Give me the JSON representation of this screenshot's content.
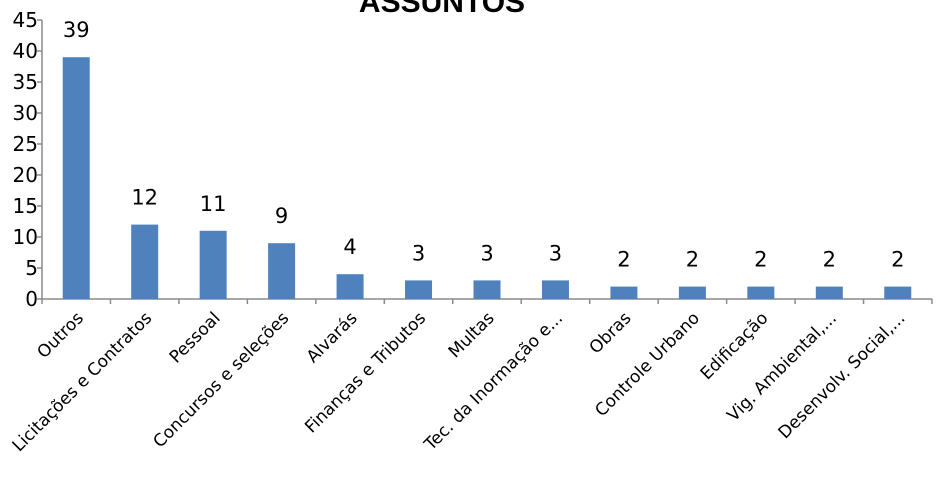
{
  "chart_data": {
    "type": "bar",
    "title": "ASSUNTOS",
    "categories": [
      "Outros",
      "Licitações e Contratos",
      "Pessoal",
      "Concursos e seleções",
      "Alvarás",
      "Finanças e Tributos",
      "Multas",
      "Tec. da Inormação e...",
      "Obras",
      "Controle Urbano",
      "Edificação",
      "Vig. Ambiental,...",
      "Desenvolv. Social,..."
    ],
    "values": [
      39,
      12,
      11,
      9,
      4,
      3,
      3,
      3,
      2,
      2,
      2,
      2,
      2
    ],
    "ylim": [
      0,
      45
    ],
    "yticks": [
      0,
      5,
      10,
      15,
      20,
      25,
      30,
      35,
      40,
      45
    ],
    "xlabel": "",
    "ylabel": "",
    "grid": false,
    "legend": "none",
    "bar_color": "#4f81bd",
    "data_labels": true
  }
}
